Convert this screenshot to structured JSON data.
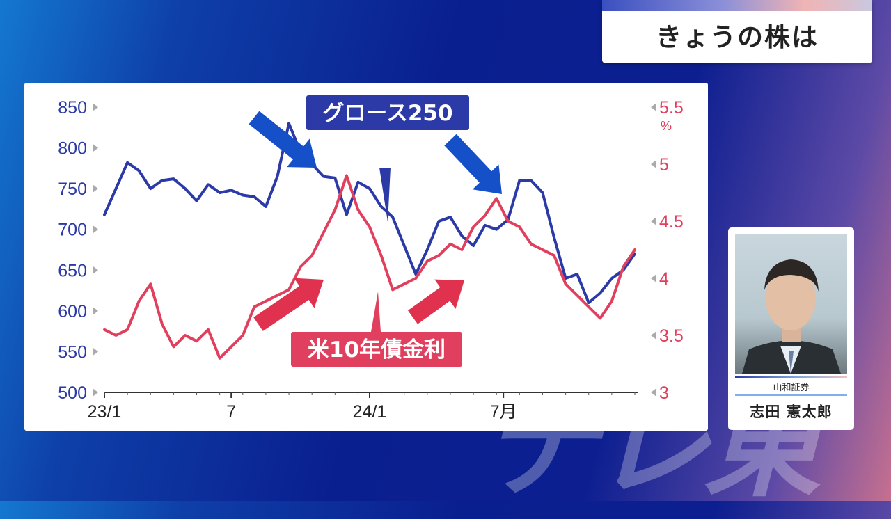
{
  "header": {
    "title": "きょうの株は"
  },
  "presenter": {
    "company": "山和証券",
    "name": "志田 憲太郎"
  },
  "watermark": {
    "text": "テレ東"
  },
  "chart_data": {
    "type": "line",
    "x_ticks": [
      "23/1",
      "7",
      "24/1",
      "7月"
    ],
    "y_left": {
      "ticks": [
        "850",
        "800",
        "750",
        "700",
        "650",
        "600",
        "550",
        "500"
      ],
      "ylim": [
        500,
        850
      ],
      "color": "#2b3aa6"
    },
    "y_right": {
      "ticks": [
        "5.5",
        "5",
        "4.5",
        "4",
        "3.5",
        "3"
      ],
      "unit": "%",
      "ylim": [
        3,
        5.5
      ],
      "color": "#e0405e"
    },
    "series": [
      {
        "name": "グロース250",
        "axis": "left",
        "color": "#2b3aa6",
        "x": [
          0,
          0.5,
          1,
          1.5,
          2,
          2.5,
          3,
          3.5,
          4,
          4.5,
          5,
          5.5,
          6,
          6.5,
          7,
          7.5,
          8,
          8.5,
          9,
          9.5,
          10,
          10.5,
          11,
          11.5,
          12,
          12.5,
          13,
          13.5,
          14,
          14.5,
          15,
          15.5,
          16,
          16.5,
          17,
          17.5,
          18,
          18.5,
          19,
          19.5,
          20,
          20.5,
          21,
          21.5,
          22,
          22.5,
          23
        ],
        "values": [
          718,
          750,
          782,
          772,
          750,
          760,
          762,
          750,
          735,
          755,
          745,
          748,
          742,
          740,
          728,
          765,
          830,
          795,
          780,
          765,
          763,
          718,
          758,
          750,
          728,
          715,
          680,
          645,
          675,
          710,
          715,
          692,
          680,
          705,
          700,
          712,
          760,
          760,
          745,
          690,
          640,
          645,
          610,
          622,
          640,
          650,
          670
        ]
      },
      {
        "name": "米10年債金利",
        "axis": "right",
        "color": "#e0405e",
        "x": [
          0,
          0.5,
          1,
          1.5,
          2,
          2.5,
          3,
          3.5,
          4,
          4.5,
          5,
          5.5,
          6,
          6.5,
          7,
          7.5,
          8,
          8.5,
          9,
          9.5,
          10,
          10.5,
          11,
          11.5,
          12,
          12.5,
          13,
          13.5,
          14,
          14.5,
          15,
          15.5,
          16,
          16.5,
          17,
          17.5,
          18,
          18.5,
          19,
          19.5,
          20,
          20.5,
          21,
          21.5,
          22,
          22.5,
          23
        ],
        "values": [
          3.55,
          3.5,
          3.55,
          3.8,
          3.95,
          3.6,
          3.4,
          3.5,
          3.45,
          3.55,
          3.3,
          3.4,
          3.5,
          3.75,
          3.8,
          3.85,
          3.9,
          4.1,
          4.2,
          4.4,
          4.6,
          4.9,
          4.6,
          4.45,
          4.2,
          3.9,
          3.95,
          4.0,
          4.15,
          4.2,
          4.3,
          4.25,
          4.45,
          4.55,
          4.7,
          4.5,
          4.45,
          4.3,
          4.25,
          4.2,
          3.95,
          3.85,
          3.75,
          3.65,
          3.8,
          4.1,
          4.25
        ]
      }
    ],
    "x_tick_positions": [
      0,
      5.5,
      11.5,
      17.3
    ],
    "annotations": {
      "growth_label": "グロース250",
      "rate_label": "米10年債金利"
    }
  }
}
